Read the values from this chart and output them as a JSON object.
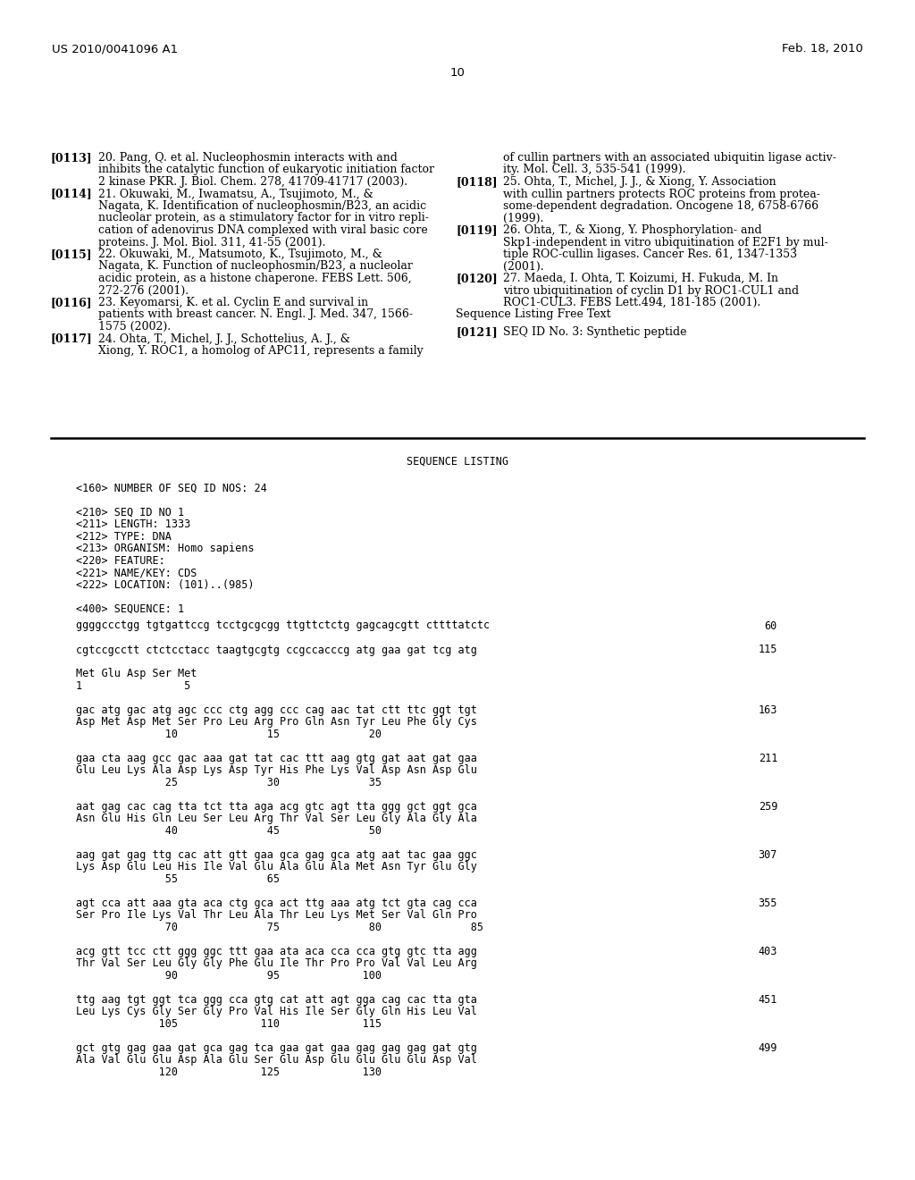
{
  "bg_color": "#ffffff",
  "header_left": "US 2010/0041096 A1",
  "header_right": "Feb. 18, 2010",
  "page_number": "10",
  "left_refs": [
    {
      "tag": "[0113]",
      "lines": [
        "20. Pang, Q. et al. Nucleophosmin interacts with and",
        "inhibits the catalytic function of eukaryotic initiation factor",
        "2 kinase PKR. J. Biol. Chem. 278, 41709-41717 (2003)."
      ]
    },
    {
      "tag": "[0114]",
      "lines": [
        "21. Okuwaki, M., Iwamatsu, A., Tsujimoto, M., &",
        "Nagata, K. Identification of nucleophosmin/B23, an acidic",
        "nucleolar protein, as a stimulatory factor for in vitro repli-",
        "cation of adenovirus DNA complexed with viral basic core",
        "proteins. J. Mol. Biol. 311, 41-55 (2001)."
      ]
    },
    {
      "tag": "[0115]",
      "lines": [
        "22. Okuwaki, M., Matsumoto, K., Tsujimoto, M., &",
        "Nagata, K. Function of nucleophosmin/B23, a nucleolar",
        "acidic protein, as a histone chaperone. FEBS Lett. 506,",
        "272-276 (2001)."
      ]
    },
    {
      "tag": "[0116]",
      "lines": [
        "23. Keyomarsi, K. et al. Cyclin E and survival in",
        "patients with breast cancer. N. Engl. J. Med. 347, 1566-",
        "1575 (2002)."
      ]
    },
    {
      "tag": "[0117]",
      "lines": [
        "24. Ohta, T., Michel, J. J., Schottelius, A. J., &",
        "Xiong, Y. ROC1, a homolog of APC11, represents a family"
      ]
    }
  ],
  "right_refs": [
    {
      "tag": "",
      "lines": [
        "of cullin partners with an associated ubiquitin ligase activ-",
        "ity. Mol. Cell. 3, 535-541 (1999)."
      ]
    },
    {
      "tag": "[0118]",
      "lines": [
        "25. Ohta, T., Michel, J. J., & Xiong, Y. Association",
        "with cullin partners protects ROC proteins from protea-",
        "some-dependent degradation. Oncogene 18, 6758-6766",
        "(1999)."
      ]
    },
    {
      "tag": "[0119]",
      "lines": [
        "26. Ohta, T., & Xiong, Y. Phosphorylation- and",
        "Skp1-independent in vitro ubiquitination of E2F1 by mul-",
        "tiple ROC-cullin ligases. Cancer Res. 61, 1347-1353",
        "(2001)."
      ]
    },
    {
      "tag": "[0120]",
      "lines": [
        "27. Maeda, I. Ohta, T. Koizumi, H. Fukuda, M. In",
        "vitro ubiquitination of cyclin D1 by ROC1-CUL1 and",
        "ROC1-CUL3. FEBS Lett.494, 181-185 (2001)."
      ]
    },
    {
      "tag": "Sequence Listing Free Text",
      "lines": []
    },
    {
      "tag": "[0121]",
      "lines": [
        "SEQ ID No. 3: Synthetic peptide"
      ]
    }
  ],
  "seq_listing_title": "SEQUENCE LISTING",
  "seq_header": [
    "<160> NUMBER OF SEQ ID NOS: 24",
    "",
    "<210> SEQ ID NO 1",
    "<211> LENGTH: 1333",
    "<212> TYPE: DNA",
    "<213> ORGANISM: Homo sapiens",
    "<220> FEATURE:",
    "<221> NAME/KEY: CDS",
    "<222> LOCATION: (101)..(985)",
    "",
    "<400> SEQUENCE: 1"
  ],
  "seq_data": [
    {
      "type": "dna",
      "seq": "ggggccctgg tgtgattccg tcctgcgcgg ttgttctctg gagcagcgtt cttttatctc",
      "num": "60"
    },
    {
      "type": "blank"
    },
    {
      "type": "dna",
      "seq": "cgtccgcctt ctctcctacc taagtgcgtg ccgccacccg atg gaa gat tcg atg",
      "num": "115"
    },
    {
      "type": "blank"
    },
    {
      "type": "aa",
      "seq": "Met Glu Asp Ser Met"
    },
    {
      "type": "pos",
      "seq": "1                5"
    },
    {
      "type": "blank"
    },
    {
      "type": "dna",
      "seq": "gac atg gac atg agc ccc ctg agg ccc cag aac tat ctt ttc ggt tgt",
      "num": "163"
    },
    {
      "type": "aa",
      "seq": "Asp Met Asp Met Ser Pro Leu Arg Pro Gln Asn Tyr Leu Phe Gly Cys"
    },
    {
      "type": "pos",
      "seq": "              10              15              20"
    },
    {
      "type": "blank"
    },
    {
      "type": "dna",
      "seq": "gaa cta aag gcc gac aaa gat tat cac ttt aag gtg gat aat gat gaa",
      "num": "211"
    },
    {
      "type": "aa",
      "seq": "Glu Leu Lys Ala Asp Lys Asp Tyr His Phe Lys Val Asp Asn Asp Glu"
    },
    {
      "type": "pos",
      "seq": "              25              30              35"
    },
    {
      "type": "blank"
    },
    {
      "type": "dna",
      "seq": "aat gag cac cag tta tct tta aga acg gtc agt tta ggg gct ggt gca",
      "num": "259"
    },
    {
      "type": "aa",
      "seq": "Asn Glu His Gln Leu Ser Leu Arg Thr Val Ser Leu Gly Ala Gly Ala"
    },
    {
      "type": "pos",
      "seq": "              40              45              50"
    },
    {
      "type": "blank"
    },
    {
      "type": "dna",
      "seq": "aag gat gag ttg cac att gtt gaa gca gag gca atg aat tac gaa ggc",
      "num": "307"
    },
    {
      "type": "aa",
      "seq": "Lys Asp Glu Leu His Ile Val Glu Ala Glu Ala Met Asn Tyr Glu Gly"
    },
    {
      "type": "pos",
      "seq": "              55              65"
    },
    {
      "type": "blank"
    },
    {
      "type": "dna",
      "seq": "agt cca att aaa gta aca ctg gca act ttg aaa atg tct gta cag cca",
      "num": "355"
    },
    {
      "type": "aa",
      "seq": "Ser Pro Ile Lys Val Thr Leu Ala Thr Leu Lys Met Ser Val Gln Pro"
    },
    {
      "type": "pos",
      "seq": "              70              75              80              85"
    },
    {
      "type": "blank"
    },
    {
      "type": "dna",
      "seq": "acg gtt tcc ctt ggg ggc ttt gaa ata aca cca cca gtg gtc tta agg",
      "num": "403"
    },
    {
      "type": "aa",
      "seq": "Thr Val Ser Leu Gly Gly Phe Glu Ile Thr Pro Pro Val Val Leu Arg"
    },
    {
      "type": "pos",
      "seq": "              90              95             100"
    },
    {
      "type": "blank"
    },
    {
      "type": "dna",
      "seq": "ttg aag tgt ggt tca ggg cca gtg cat att agt gga cag cac tta gta",
      "num": "451"
    },
    {
      "type": "aa",
      "seq": "Leu Lys Cys Gly Ser Gly Pro Val His Ile Ser Gly Gln His Leu Val"
    },
    {
      "type": "pos",
      "seq": "             105             110             115"
    },
    {
      "type": "blank"
    },
    {
      "type": "dna",
      "seq": "gct gtg gag gaa gat gca gag tca gaa gat gaa gag gag gag gat gtg",
      "num": "499"
    },
    {
      "type": "aa",
      "seq": "Ala Val Glu Glu Asp Ala Glu Ser Glu Asp Glu Glu Glu Glu Asp Val"
    },
    {
      "type": "pos",
      "seq": "             120             125             130"
    }
  ]
}
